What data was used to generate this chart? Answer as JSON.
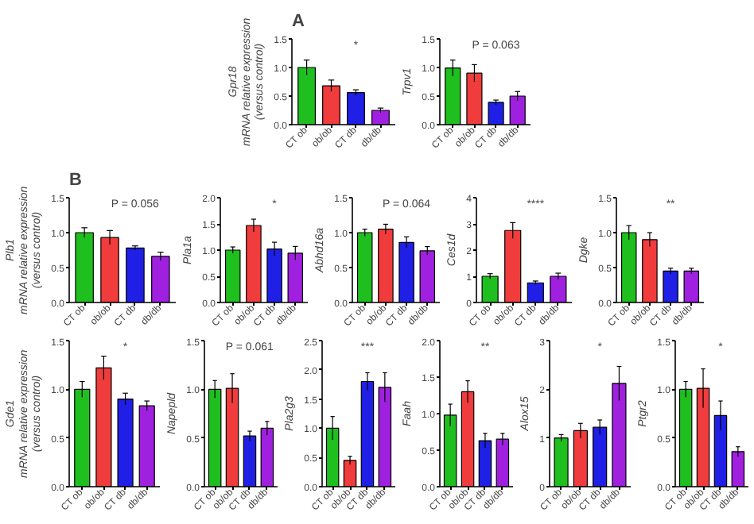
{
  "chart_data": [
    {
      "type": "bar",
      "title": "A",
      "categories": [
        "CT ob",
        "ob/ob",
        "CT db",
        "db/db"
      ],
      "colors": [
        "#1fbf1f",
        "#f03c3c",
        "#1f1fe6",
        "#a020e0"
      ],
      "values": [
        1.0,
        0.68,
        0.56,
        0.25
      ],
      "errors": [
        0.13,
        0.1,
        0.05,
        0.04
      ],
      "ylim": [
        0,
        1.5
      ],
      "yticks": [
        {
          "value": 0,
          "label": "0.0"
        },
        {
          "value": 0.5,
          "label": "0.5"
        },
        {
          "value": 1,
          "label": "1.0"
        },
        {
          "value": 1.5,
          "label": "1.5"
        }
      ],
      "ylabel": "Gpr18\nmRNA relative expression\n(versus control)",
      "annotations": [
        "*"
      ]
    },
    {
      "type": "bar",
      "categories": [
        "CT ob",
        "ob/ob",
        "CT db",
        "db/db"
      ],
      "colors": [
        "#1fbf1f",
        "#f03c3c",
        "#1f1fe6",
        "#a020e0"
      ],
      "values": [
        0.99,
        0.9,
        0.39,
        0.5
      ],
      "errors": [
        0.14,
        0.15,
        0.04,
        0.08
      ],
      "ylim": [
        0,
        1.5
      ],
      "yticks": [
        {
          "value": 0,
          "label": "0.0"
        },
        {
          "value": 0.5,
          "label": "0.5"
        },
        {
          "value": 1,
          "label": "1.0"
        },
        {
          "value": 1.5,
          "label": "1.5"
        }
      ],
      "ylabel": "Trpv1",
      "annotations": [
        "P = 0.063"
      ]
    },
    {
      "type": "bar",
      "title": "B",
      "categories": [
        "CT ob",
        "ob/ob",
        "CT db",
        "db/db"
      ],
      "colors": [
        "#1fbf1f",
        "#f03c3c",
        "#1f1fe6",
        "#a020e0"
      ],
      "values": [
        1.0,
        0.93,
        0.78,
        0.66
      ],
      "errors": [
        0.07,
        0.1,
        0.03,
        0.06
      ],
      "ylim": [
        0,
        1.5
      ],
      "yticks": [
        {
          "value": 0,
          "label": "0.0"
        },
        {
          "value": 0.5,
          "label": "0.5"
        },
        {
          "value": 1,
          "label": "1.0"
        },
        {
          "value": 1.5,
          "label": "1.5"
        }
      ],
      "ylabel": "Plb1\nmRNA relative expression\n(versus control)",
      "annotations": [
        "P = 0.056"
      ]
    },
    {
      "type": "bar",
      "categories": [
        "CT ob",
        "ob/ob",
        "CT db",
        "db/db"
      ],
      "colors": [
        "#1fbf1f",
        "#f03c3c",
        "#1f1fe6",
        "#a020e0"
      ],
      "values": [
        1.0,
        1.47,
        1.02,
        0.94
      ],
      "errors": [
        0.06,
        0.12,
        0.13,
        0.13
      ],
      "ylim": [
        0,
        2
      ],
      "yticks": [
        {
          "value": 0,
          "label": "0.0"
        },
        {
          "value": 0.5,
          "label": "0.5"
        },
        {
          "value": 1,
          "label": "1.0"
        },
        {
          "value": 1.5,
          "label": "1.5"
        },
        {
          "value": 2,
          "label": "2.0"
        }
      ],
      "ylabel": "Pla1a",
      "annotations": [
        "*"
      ]
    },
    {
      "type": "bar",
      "categories": [
        "CT ob",
        "ob/ob",
        "CT db",
        "db/db"
      ],
      "colors": [
        "#1fbf1f",
        "#f03c3c",
        "#1f1fe6",
        "#a020e0"
      ],
      "values": [
        1.0,
        1.05,
        0.86,
        0.74
      ],
      "errors": [
        0.05,
        0.07,
        0.08,
        0.06
      ],
      "ylim": [
        0,
        1.5
      ],
      "yticks": [
        {
          "value": 0,
          "label": "0.0"
        },
        {
          "value": 0.5,
          "label": "0.5"
        },
        {
          "value": 1,
          "label": "1.0"
        },
        {
          "value": 1.5,
          "label": "1.5"
        }
      ],
      "ylabel": "Abhd16a",
      "annotations": [
        "P = 0.064"
      ]
    },
    {
      "type": "bar",
      "categories": [
        "CT ob",
        "ob/ob",
        "CT db",
        "db/db"
      ],
      "colors": [
        "#1fbf1f",
        "#f03c3c",
        "#1f1fe6",
        "#a020e0"
      ],
      "values": [
        1.0,
        2.75,
        0.75,
        1.0
      ],
      "errors": [
        0.1,
        0.3,
        0.07,
        0.12
      ],
      "ylim": [
        0,
        4
      ],
      "yticks": [
        0,
        1,
        2,
        3,
        4
      ],
      "ylabel": "Ces1d",
      "annotations": [
        "****"
      ]
    },
    {
      "type": "bar",
      "categories": [
        "CT ob",
        "ob/ob",
        "CT db",
        "db/db"
      ],
      "colors": [
        "#1fbf1f",
        "#f03c3c",
        "#1f1fe6",
        "#a020e0"
      ],
      "values": [
        1.0,
        0.9,
        0.45,
        0.45
      ],
      "errors": [
        0.1,
        0.1,
        0.04,
        0.04
      ],
      "ylim": [
        0,
        1.5
      ],
      "yticks": [
        {
          "value": 0,
          "label": "0.0"
        },
        {
          "value": 0.5,
          "label": "0.5"
        },
        {
          "value": 1,
          "label": "1.0"
        },
        {
          "value": 1.5,
          "label": "1.5"
        }
      ],
      "ylabel": "Dgke",
      "annotations": [
        "**"
      ]
    },
    {
      "type": "bar",
      "categories": [
        "CT ob",
        "ob/ob",
        "CT db",
        "db/db"
      ],
      "colors": [
        "#1fbf1f",
        "#f03c3c",
        "#1f1fe6",
        "#a020e0"
      ],
      "values": [
        1.0,
        1.22,
        0.9,
        0.83
      ],
      "errors": [
        0.08,
        0.12,
        0.06,
        0.05
      ],
      "ylim": [
        0,
        1.5
      ],
      "yticks": [
        {
          "value": 0,
          "label": "0.0"
        },
        {
          "value": 0.5,
          "label": "0.5"
        },
        {
          "value": 1,
          "label": "1.0"
        },
        {
          "value": 1.5,
          "label": "1.5"
        }
      ],
      "ylabel": "Gde1\nmRNA relative expression\n(versus control)",
      "annotations": [
        "*"
      ]
    },
    {
      "type": "bar",
      "categories": [
        "CT ob",
        "ob/ob",
        "CT db",
        "db/db"
      ],
      "colors": [
        "#1fbf1f",
        "#f03c3c",
        "#1f1fe6",
        "#a020e0"
      ],
      "values": [
        1.0,
        1.01,
        0.52,
        0.6
      ],
      "errors": [
        0.09,
        0.15,
        0.05,
        0.07
      ],
      "ylim": [
        0,
        1.5
      ],
      "yticks": [
        {
          "value": 0,
          "label": "0.0"
        },
        {
          "value": 0.5,
          "label": "0.5"
        },
        {
          "value": 1,
          "label": "1.0"
        },
        {
          "value": 1.5,
          "label": "1.5"
        }
      ],
      "ylabel": "Napepld",
      "annotations": [
        "P = 0.061"
      ]
    },
    {
      "type": "bar",
      "categories": [
        "CT ob",
        "ob/ob",
        "CT db",
        "db/db"
      ],
      "colors": [
        "#1fbf1f",
        "#f03c3c",
        "#1f1fe6",
        "#a020e0"
      ],
      "values": [
        1.0,
        0.45,
        1.8,
        1.7
      ],
      "errors": [
        0.2,
        0.07,
        0.15,
        0.25
      ],
      "ylim": [
        0,
        2.5
      ],
      "yticks": [
        {
          "value": 0,
          "label": "0.0"
        },
        {
          "value": 0.5,
          "label": "0.5"
        },
        {
          "value": 1,
          "label": "1.0"
        },
        {
          "value": 1.5,
          "label": "1.5"
        },
        {
          "value": 2,
          "label": "2.0"
        },
        {
          "value": 2.5,
          "label": "2.5"
        }
      ],
      "ylabel": "Pla2g3",
      "annotations": [
        "***"
      ]
    },
    {
      "type": "bar",
      "categories": [
        "CT ob",
        "ob/ob",
        "CT db",
        "db/db"
      ],
      "colors": [
        "#1fbf1f",
        "#f03c3c",
        "#1f1fe6",
        "#a020e0"
      ],
      "values": [
        0.98,
        1.3,
        0.63,
        0.65
      ],
      "errors": [
        0.15,
        0.15,
        0.1,
        0.08
      ],
      "ylim": [
        0,
        2
      ],
      "yticks": [
        {
          "value": 0,
          "label": "0.0"
        },
        {
          "value": 0.5,
          "label": "0.5"
        },
        {
          "value": 1,
          "label": "1.0"
        },
        {
          "value": 1.5,
          "label": "1.5"
        },
        {
          "value": 2,
          "label": "2.0"
        }
      ],
      "ylabel": "Faah",
      "annotations": [
        "**"
      ]
    },
    {
      "type": "bar",
      "categories": [
        "CT ob",
        "ob/ob",
        "CT db",
        "db/db"
      ],
      "colors": [
        "#1fbf1f",
        "#f03c3c",
        "#1f1fe6",
        "#a020e0"
      ],
      "values": [
        1.0,
        1.15,
        1.22,
        2.12
      ],
      "errors": [
        0.07,
        0.15,
        0.15,
        0.35
      ],
      "ylim": [
        0,
        3
      ],
      "yticks": [
        0,
        1,
        2,
        3
      ],
      "ylabel": "Alox15",
      "annotations": [
        "*"
      ]
    },
    {
      "type": "bar",
      "categories": [
        "CT ob",
        "ob/ob",
        "CT db",
        "db/db"
      ],
      "colors": [
        "#1fbf1f",
        "#f03c3c",
        "#1f1fe6",
        "#a020e0"
      ],
      "values": [
        1.0,
        1.01,
        0.73,
        0.36
      ],
      "errors": [
        0.08,
        0.2,
        0.15,
        0.05
      ],
      "ylim": [
        0,
        1.5
      ],
      "yticks": [
        {
          "value": 0,
          "label": "0.0"
        },
        {
          "value": 0.5,
          "label": "0.5"
        },
        {
          "value": 1,
          "label": "1.0"
        },
        {
          "value": 1.5,
          "label": "1.5"
        }
      ],
      "ylabel": "Ptgr2",
      "annotations": [
        "*"
      ]
    }
  ]
}
